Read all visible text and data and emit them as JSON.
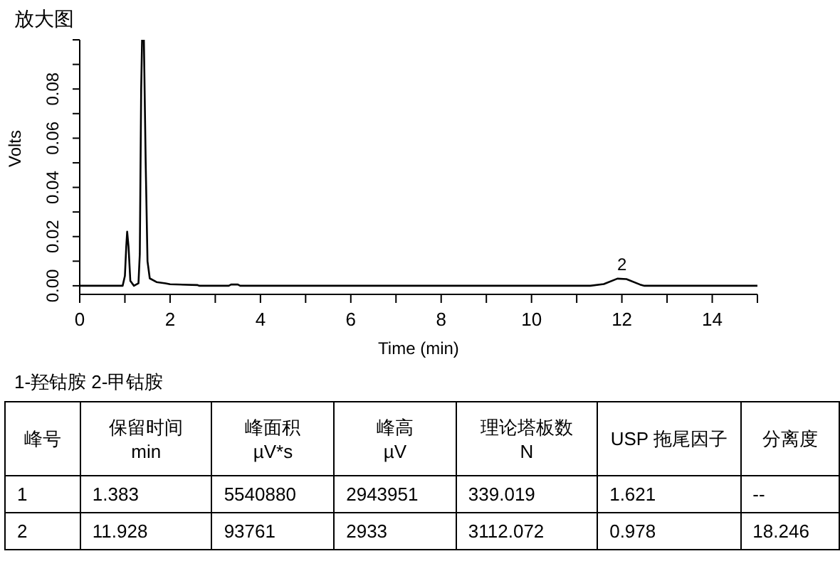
{
  "chart_data": {
    "type": "line",
    "title": "放大图",
    "xlabel": "Time (min)",
    "ylabel": "Volts",
    "x": [
      0,
      0.95,
      1.0,
      1.03,
      1.05,
      1.08,
      1.12,
      1.2,
      1.3,
      1.33,
      1.36,
      1.38,
      1.42,
      1.46,
      1.5,
      1.55,
      1.7,
      1.9,
      2.0,
      2.6,
      2.65,
      3.3,
      3.35,
      3.5,
      3.55,
      11.3,
      11.6,
      11.9,
      12.1,
      12.4,
      12.5,
      15
    ],
    "series": [
      {
        "color": "#000000",
        "values": [
          0,
          0,
          0.004,
          0.016,
          0.022,
          0.016,
          0.002,
          0,
          0.001,
          0.013,
          0.08,
          0.1,
          0.1,
          0.05,
          0.01,
          0.003,
          0.0015,
          0.001,
          0.0006,
          0.0003,
          0,
          0,
          0.0005,
          0.0005,
          0,
          0,
          0.0007,
          0.0029,
          0.0027,
          0.0005,
          0,
          0
        ]
      }
    ],
    "xlim": [
      0,
      15
    ],
    "xticks": [
      0,
      {
        "value": 1,
        "label": null
      },
      2,
      {
        "value": 3,
        "label": null
      },
      4,
      {
        "value": 5,
        "label": null
      },
      6,
      {
        "value": 7,
        "label": null
      },
      8,
      {
        "value": 9,
        "label": null
      },
      10,
      {
        "value": 11,
        "label": null
      },
      12,
      {
        "value": 13,
        "label": null
      },
      14,
      {
        "value": 15,
        "label": null
      }
    ],
    "ylim": [
      -0.0035,
      0.1
    ],
    "yticks": [
      {
        "value": 0,
        "label": "0.00"
      },
      {
        "value": 0.01,
        "label": null
      },
      {
        "value": 0.02,
        "label": "0.02"
      },
      {
        "value": 0.03,
        "label": null
      },
      {
        "value": 0.04,
        "label": "0.04"
      },
      {
        "value": 0.05,
        "label": null
      },
      {
        "value": 0.06,
        "label": "0.06"
      },
      {
        "value": 0.07,
        "label": null
      },
      {
        "value": 0.08,
        "label": "0.08"
      },
      {
        "value": 0.09,
        "label": null
      },
      {
        "value": 0.1,
        "label": null
      }
    ],
    "grid": false,
    "legend": false,
    "marker": "none",
    "line_style": "solid",
    "annotations": [
      {
        "text": "2",
        "x": 12,
        "y": 0.0029
      },
      "1-羟钴胺   2-甲钴胺",
      "峰号",
      "保留时间\nmin",
      "峰面积\nµV*s",
      "峰高\nµV",
      "理论塔板数\nN",
      "USP 拖尾因子",
      "分离度",
      "1",
      "1.383",
      "5540880",
      "2943951",
      "339.019",
      "1.621",
      "--",
      "2",
      "11.928",
      "93761",
      "2933",
      "3112.072",
      "0.978",
      "18.246"
    ]
  }
}
